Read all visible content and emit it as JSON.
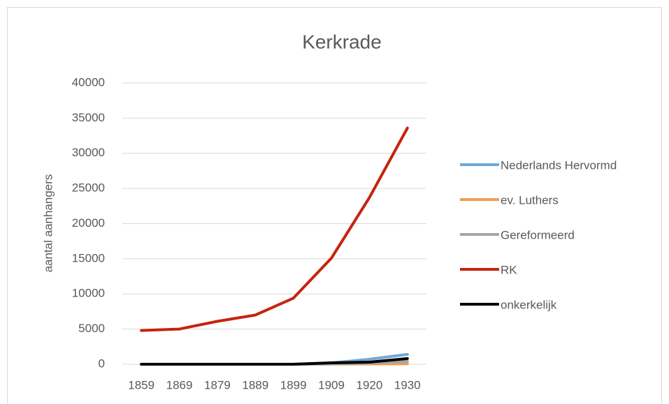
{
  "chart_data": {
    "type": "line",
    "title": "Kerkrade",
    "y_label": "aantal aanhangers",
    "categories": [
      "1859",
      "1869",
      "1879",
      "1889",
      "1899",
      "1909",
      "1920",
      "1930"
    ],
    "series": [
      {
        "name": "Nederlands Hervormd",
        "color": "#6fa8d8",
        "values": [
          0,
          0,
          0,
          0,
          0,
          200,
          700,
          1400
        ]
      },
      {
        "name": "ev. Luthers",
        "color": "#f39c4f",
        "values": [
          0,
          0,
          0,
          0,
          0,
          20,
          40,
          60
        ]
      },
      {
        "name": "Gereformeerd",
        "color": "#a5a5a5",
        "values": [
          0,
          0,
          0,
          0,
          0,
          50,
          150,
          400
        ]
      },
      {
        "name": "RK",
        "color": "#c6230f",
        "values": [
          4800,
          5000,
          6100,
          7000,
          9400,
          15100,
          23700,
          33600
        ]
      },
      {
        "name": "onkerkelijk",
        "color": "#000000",
        "values": [
          0,
          0,
          0,
          0,
          0,
          200,
          300,
          800
        ]
      }
    ],
    "ylim": [
      0,
      40000
    ],
    "yticks": [
      0,
      5000,
      10000,
      15000,
      20000,
      25000,
      30000,
      35000,
      40000
    ],
    "grid": true,
    "legend": "right"
  }
}
